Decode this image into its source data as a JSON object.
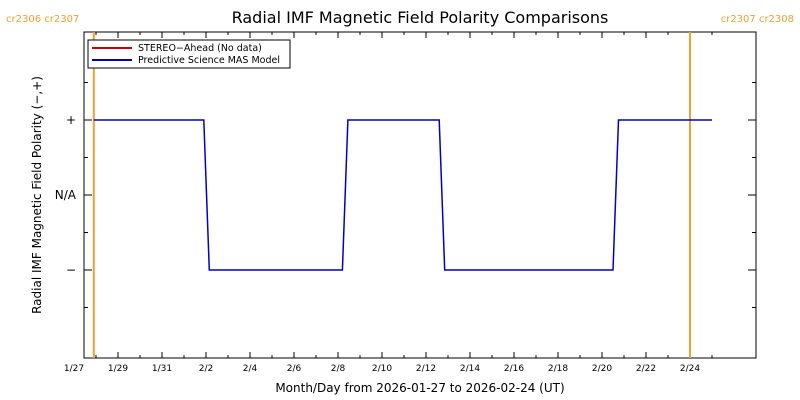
{
  "chart_data": {
    "type": "line",
    "title": "Radial IMF Magnetic Field Polarity Comparisons",
    "xlabel": "Month/Day from 2026-01-27 to 2026-02-24 (UT)",
    "ylabel": "Radial IMF Magnetic Field Polarity (−,+)",
    "x_start_date": "2026-01-27",
    "xlim_days": [
      0,
      29
    ],
    "x_ticks": [
      {
        "day": 0,
        "label": "1/27"
      },
      {
        "day": 2,
        "label": "1/29"
      },
      {
        "day": 4,
        "label": "1/31"
      },
      {
        "day": 6,
        "label": "2/2"
      },
      {
        "day": 8,
        "label": "2/4"
      },
      {
        "day": 10,
        "label": "2/6"
      },
      {
        "day": 12,
        "label": "2/8"
      },
      {
        "day": 14,
        "label": "2/10"
      },
      {
        "day": 16,
        "label": "2/12"
      },
      {
        "day": 18,
        "label": "2/14"
      },
      {
        "day": 20,
        "label": "2/16"
      },
      {
        "day": 22,
        "label": "2/18"
      },
      {
        "day": 24,
        "label": "2/20"
      },
      {
        "day": 26,
        "label": "2/22"
      },
      {
        "day": 28,
        "label": "2/24"
      }
    ],
    "ylim": [
      -2,
      2
    ],
    "y_ticks": [
      {
        "value": 1,
        "label": "+"
      },
      {
        "value": 0,
        "label": "N/A"
      },
      {
        "value": -1,
        "label": "−"
      }
    ],
    "legend_position": "top-left",
    "series": [
      {
        "name": "STEREO−Ahead (No data)",
        "color": "#cc0000",
        "x": [],
        "y": []
      },
      {
        "name": "Predictive Science MAS Model",
        "color": "#0000cc",
        "x": [
          0.9,
          5.9,
          6.15,
          12.2,
          12.45,
          16.6,
          16.85,
          24.5,
          24.75,
          29.0
        ],
        "y": [
          1,
          1,
          -1,
          -1,
          1,
          1,
          -1,
          -1,
          1,
          1
        ]
      }
    ],
    "carrington_markers": [
      {
        "day": 0.9,
        "label": "cr2306 cr2307",
        "side": "left"
      },
      {
        "day": 28.0,
        "label": "cr2307 cr2308",
        "side": "right"
      }
    ],
    "marker_color": "#f0a030"
  }
}
